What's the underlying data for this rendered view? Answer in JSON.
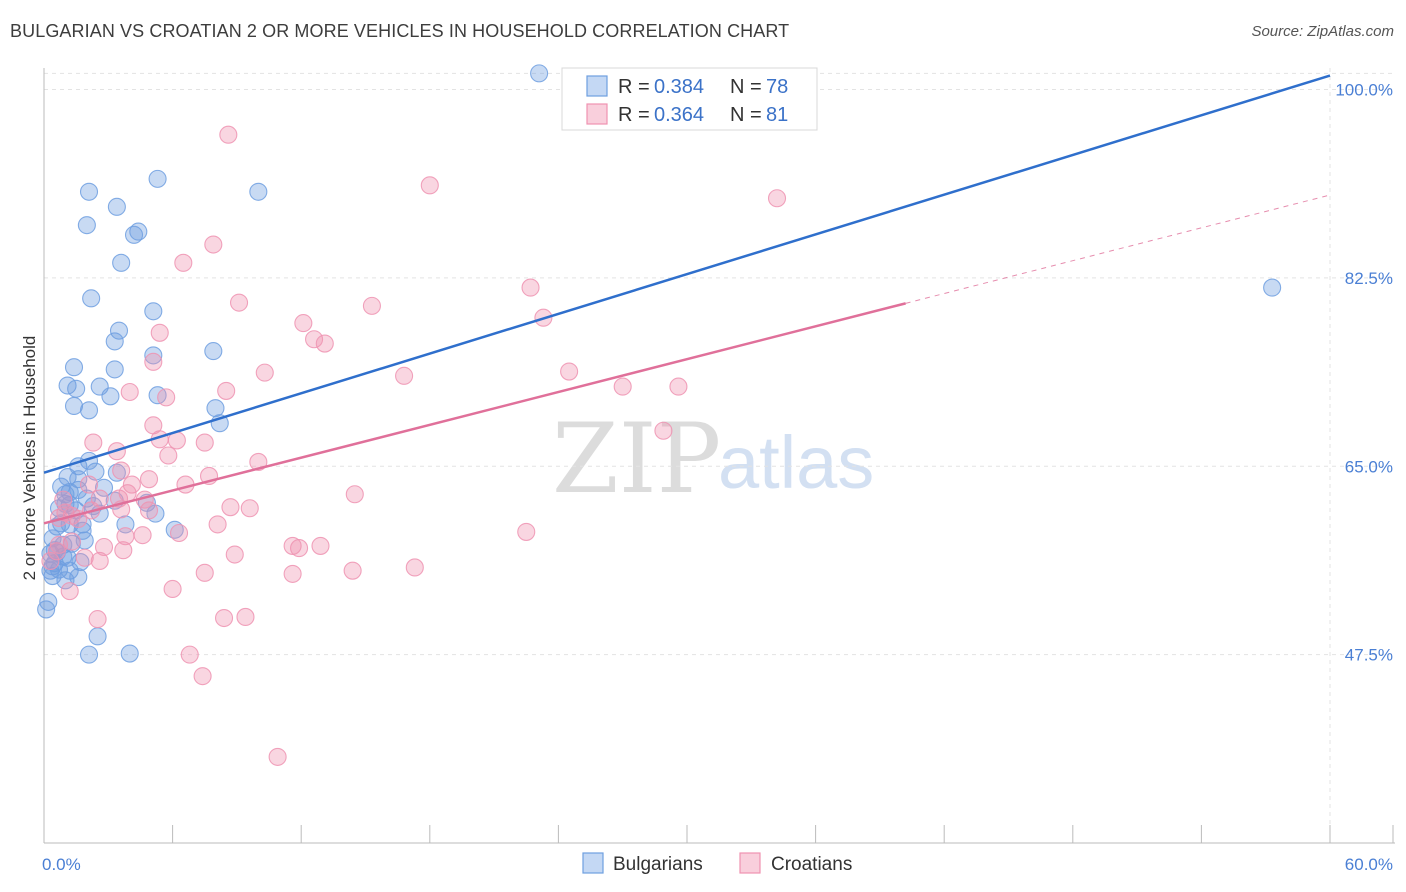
{
  "title": "BULGARIAN VS CROATIAN 2 OR MORE VEHICLES IN HOUSEHOLD CORRELATION CHART",
  "source": "Source: ZipAtlas.com",
  "watermark": {
    "zip": "ZIP",
    "atlas": "atlas"
  },
  "colors": {
    "bulgarian": "#6f9fe0",
    "bulgarian_line": "#2f6fcc",
    "croatian": "#ef93b1",
    "croatian_line": "#e0709a",
    "grid": "#e3e3e3",
    "tick": "#4a7fd4"
  },
  "legend": {
    "rows": [
      {
        "r_label": "R =",
        "r_value": "0.384",
        "n_label": "N =",
        "n_value": "78",
        "series": "bulgarian"
      },
      {
        "r_label": "R =",
        "r_value": "0.364",
        "n_label": "N =",
        "n_value": "81",
        "series": "croatian"
      }
    ]
  },
  "bottom_legend": [
    {
      "label": "Bulgarians",
      "series": "bulgarian"
    },
    {
      "label": "Croatians",
      "series": "croatian"
    }
  ],
  "chart_data": {
    "type": "scatter",
    "title": "BULGARIAN VS CROATIAN 2 OR MORE VEHICLES IN HOUSEHOLD CORRELATION CHART",
    "xlabel": "",
    "ylabel": "2 or more Vehicles in Household",
    "xlim": [
      0,
      60
    ],
    "ylim": [
      30,
      102
    ],
    "x_tick_labels": [
      "0.0%",
      "60.0%"
    ],
    "y_ticks": [
      47.5,
      65.0,
      82.5,
      100.0
    ],
    "y_tick_labels": [
      "47.5%",
      "65.0%",
      "82.5%",
      "100.0%"
    ],
    "x_minor_ticks": [
      0,
      6,
      12,
      18,
      24,
      30,
      36,
      42,
      48,
      54,
      60
    ],
    "series": [
      {
        "name": "Bulgarians",
        "key": "bulgarian",
        "R": 0.384,
        "N": 78,
        "trend": {
          "x0": 0,
          "y0": 64.4,
          "x1": 60,
          "y1": 101.3,
          "dashed_from": null
        },
        "points": [
          [
            23.1,
            101.5
          ],
          [
            2.1,
            90.5
          ],
          [
            5.3,
            91.7
          ],
          [
            10.0,
            90.5
          ],
          [
            3.4,
            89.1
          ],
          [
            2.0,
            87.4
          ],
          [
            4.2,
            86.5
          ],
          [
            4.4,
            86.8
          ],
          [
            3.6,
            83.9
          ],
          [
            2.2,
            80.6
          ],
          [
            57.3,
            81.6
          ],
          [
            5.1,
            79.4
          ],
          [
            3.5,
            77.6
          ],
          [
            3.3,
            76.6
          ],
          [
            7.9,
            75.7
          ],
          [
            5.1,
            75.3
          ],
          [
            1.4,
            74.2
          ],
          [
            3.3,
            74.0
          ],
          [
            1.1,
            72.5
          ],
          [
            1.5,
            72.2
          ],
          [
            2.6,
            72.4
          ],
          [
            3.1,
            71.5
          ],
          [
            5.3,
            71.6
          ],
          [
            1.4,
            70.6
          ],
          [
            2.1,
            70.2
          ],
          [
            8.0,
            70.4
          ],
          [
            8.2,
            69.0
          ],
          [
            2.1,
            65.5
          ],
          [
            1.6,
            65.0
          ],
          [
            2.4,
            64.5
          ],
          [
            3.4,
            64.4
          ],
          [
            1.1,
            64.0
          ],
          [
            1.6,
            63.8
          ],
          [
            0.8,
            63.1
          ],
          [
            1.2,
            62.6
          ],
          [
            1.6,
            62.8
          ],
          [
            2.0,
            62.0
          ],
          [
            1.2,
            61.4
          ],
          [
            0.7,
            61.1
          ],
          [
            1.0,
            61.5
          ],
          [
            1.5,
            60.9
          ],
          [
            2.3,
            61.3
          ],
          [
            3.3,
            61.8
          ],
          [
            2.6,
            60.6
          ],
          [
            4.8,
            61.6
          ],
          [
            5.2,
            60.6
          ],
          [
            1.8,
            59.6
          ],
          [
            3.8,
            59.6
          ],
          [
            0.6,
            59.4
          ],
          [
            0.8,
            59.7
          ],
          [
            1.2,
            59.6
          ],
          [
            1.8,
            59.0
          ],
          [
            1.9,
            58.1
          ],
          [
            0.4,
            58.3
          ],
          [
            0.9,
            57.7
          ],
          [
            0.5,
            57.2
          ],
          [
            6.1,
            59.1
          ],
          [
            0.3,
            56.9
          ],
          [
            1.1,
            56.5
          ],
          [
            1.7,
            56.1
          ],
          [
            0.4,
            55.7
          ],
          [
            0.3,
            55.3
          ],
          [
            0.7,
            55.4
          ],
          [
            1.2,
            55.3
          ],
          [
            0.4,
            54.8
          ],
          [
            1.0,
            54.4
          ],
          [
            1.6,
            54.7
          ],
          [
            0.9,
            56.6
          ],
          [
            0.5,
            56.0
          ],
          [
            0.2,
            52.4
          ],
          [
            0.1,
            51.7
          ],
          [
            2.5,
            49.2
          ],
          [
            2.1,
            47.5
          ],
          [
            4.0,
            47.6
          ],
          [
            0.6,
            57.0
          ],
          [
            1.3,
            57.8
          ],
          [
            1.0,
            62.4
          ],
          [
            2.8,
            63.0
          ]
        ]
      },
      {
        "name": "Croatians",
        "key": "croatian",
        "R": 0.364,
        "N": 81,
        "trend": {
          "x0": 0,
          "y0": 59.7,
          "x1": 60,
          "y1": 90.2,
          "dashed_from": 40.2
        },
        "points": [
          [
            8.6,
            95.8
          ],
          [
            18.0,
            91.1
          ],
          [
            34.2,
            89.9
          ],
          [
            7.9,
            85.6
          ],
          [
            6.5,
            83.9
          ],
          [
            22.7,
            81.6
          ],
          [
            9.1,
            80.2
          ],
          [
            15.3,
            79.9
          ],
          [
            23.3,
            78.8
          ],
          [
            12.1,
            78.3
          ],
          [
            5.4,
            77.4
          ],
          [
            12.6,
            76.8
          ],
          [
            13.1,
            76.4
          ],
          [
            5.1,
            74.7
          ],
          [
            10.3,
            73.7
          ],
          [
            24.5,
            73.8
          ],
          [
            16.8,
            73.4
          ],
          [
            8.5,
            72.0
          ],
          [
            27.0,
            72.4
          ],
          [
            29.6,
            72.4
          ],
          [
            4.0,
            71.9
          ],
          [
            5.7,
            71.4
          ],
          [
            28.9,
            68.3
          ],
          [
            5.1,
            68.8
          ],
          [
            5.4,
            67.5
          ],
          [
            6.2,
            67.4
          ],
          [
            2.3,
            67.2
          ],
          [
            7.5,
            67.2
          ],
          [
            3.4,
            66.4
          ],
          [
            5.8,
            66.0
          ],
          [
            10.0,
            65.4
          ],
          [
            3.6,
            64.6
          ],
          [
            7.7,
            64.1
          ],
          [
            4.9,
            63.8
          ],
          [
            2.1,
            63.3
          ],
          [
            4.1,
            63.3
          ],
          [
            14.5,
            62.4
          ],
          [
            0.9,
            61.9
          ],
          [
            2.6,
            62.0
          ],
          [
            3.9,
            62.5
          ],
          [
            4.7,
            61.9
          ],
          [
            3.6,
            61.0
          ],
          [
            8.7,
            61.2
          ],
          [
            9.6,
            61.1
          ],
          [
            2.2,
            60.9
          ],
          [
            1.3,
            60.4
          ],
          [
            0.7,
            60.2
          ],
          [
            1.6,
            60.1
          ],
          [
            8.1,
            59.6
          ],
          [
            22.5,
            58.9
          ],
          [
            6.3,
            58.8
          ],
          [
            4.6,
            58.6
          ],
          [
            3.8,
            58.5
          ],
          [
            1.3,
            58.0
          ],
          [
            0.7,
            57.7
          ],
          [
            11.6,
            57.6
          ],
          [
            11.9,
            57.4
          ],
          [
            12.9,
            57.6
          ],
          [
            3.7,
            57.2
          ],
          [
            0.6,
            57.1
          ],
          [
            2.8,
            57.5
          ],
          [
            8.9,
            56.8
          ],
          [
            0.3,
            56.2
          ],
          [
            1.9,
            56.5
          ],
          [
            2.6,
            56.2
          ],
          [
            7.5,
            55.1
          ],
          [
            14.4,
            55.3
          ],
          [
            17.3,
            55.6
          ],
          [
            11.6,
            55.0
          ],
          [
            6.0,
            53.6
          ],
          [
            1.2,
            53.4
          ],
          [
            8.4,
            50.9
          ],
          [
            2.5,
            50.8
          ],
          [
            9.4,
            51.0
          ],
          [
            6.8,
            47.5
          ],
          [
            7.4,
            45.5
          ],
          [
            10.9,
            38.0
          ],
          [
            4.9,
            60.9
          ],
          [
            1.0,
            60.7
          ],
          [
            3.5,
            62.0
          ],
          [
            6.6,
            63.3
          ]
        ]
      }
    ]
  }
}
